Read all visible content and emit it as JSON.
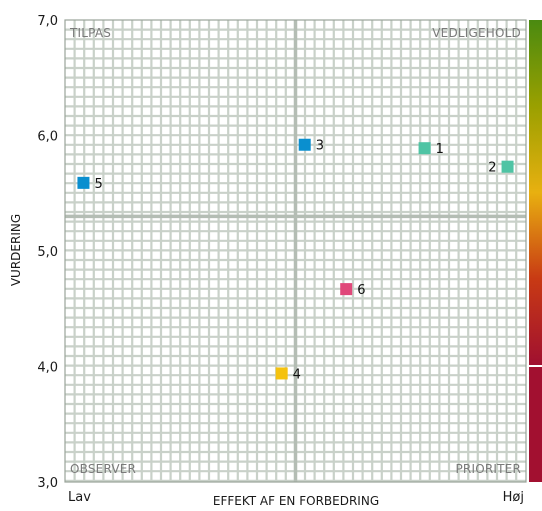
{
  "chart_data": {
    "type": "scatter",
    "xlabel": "EFFEKT AF EN FORBEDRING",
    "ylabel": "VURDERING",
    "x_tick_labels": [
      "Lav",
      "Høj"
    ],
    "y_ticks": [
      {
        "value": 3.0,
        "label": "3,0"
      },
      {
        "value": 4.0,
        "label": "4,0"
      },
      {
        "value": 5.0,
        "label": "5,0"
      },
      {
        "value": 6.0,
        "label": "6,0"
      },
      {
        "value": 7.0,
        "label": "7,0"
      }
    ],
    "ylim": [
      3.0,
      7.0
    ],
    "xlim": [
      0,
      1
    ],
    "quadrant_split": {
      "x": 0.5,
      "y": 5.3
    },
    "quadrant_labels": {
      "top_left": "TILPAS",
      "top_right": "VEDLIGEHOLD",
      "bottom_left": "OBSERVER",
      "bottom_right": "PRIORITER"
    },
    "grid": true,
    "points": [
      {
        "label": "1",
        "x": 0.78,
        "y": 5.89,
        "color": "#4fc4a4",
        "label_side": "right"
      },
      {
        "label": "2",
        "x": 0.96,
        "y": 5.73,
        "color": "#4fc4a4",
        "label_side": "left"
      },
      {
        "label": "3",
        "x": 0.52,
        "y": 5.92,
        "color": "#0a8fcf",
        "label_side": "right"
      },
      {
        "label": "4",
        "x": 0.47,
        "y": 3.94,
        "color": "#f5c20f",
        "label_side": "right"
      },
      {
        "label": "5",
        "x": 0.04,
        "y": 5.59,
        "color": "#0a8fcf",
        "label_side": "right"
      },
      {
        "label": "6",
        "x": 0.61,
        "y": 4.67,
        "color": "#e0487a",
        "label_side": "right"
      }
    ],
    "scale_colors": [
      "#4a8a10",
      "#9aa000",
      "#e8b010",
      "#c83a14",
      "#a01030"
    ]
  }
}
